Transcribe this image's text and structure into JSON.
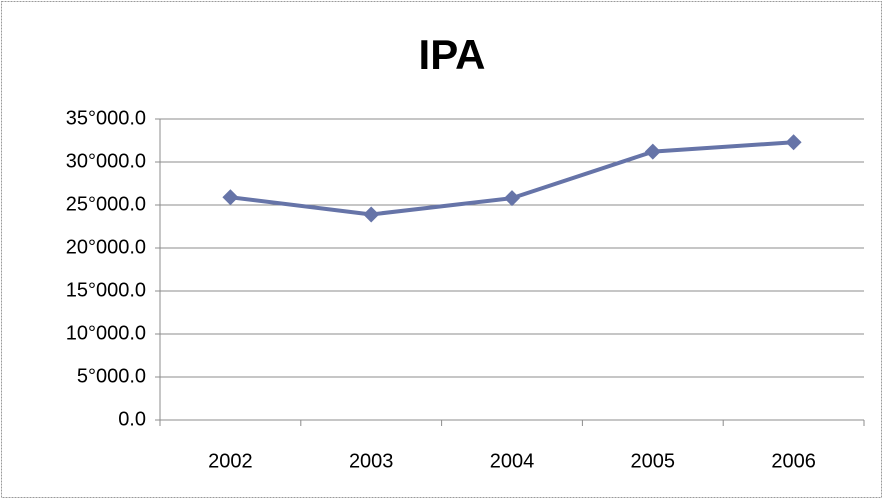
{
  "chart_data": {
    "type": "line",
    "title": "IPA",
    "categories": [
      "2002",
      "2003",
      "2004",
      "2005",
      "2006"
    ],
    "values": [
      25900,
      23900,
      25800,
      31200,
      32300
    ],
    "color": "#6674a8",
    "ylim": [
      0,
      35000
    ],
    "yticks": [
      {
        "value": 0,
        "label": "0.0"
      },
      {
        "value": 5000,
        "label": "5°000.0"
      },
      {
        "value": 10000,
        "label": "10°000.0"
      },
      {
        "value": 15000,
        "label": "15°000.0"
      },
      {
        "value": 20000,
        "label": "20°000.0"
      },
      {
        "value": 25000,
        "label": "25°000.0"
      },
      {
        "value": 30000,
        "label": "30°000.0"
      },
      {
        "value": 35000,
        "label": "35°000.0"
      }
    ],
    "grid": true
  }
}
